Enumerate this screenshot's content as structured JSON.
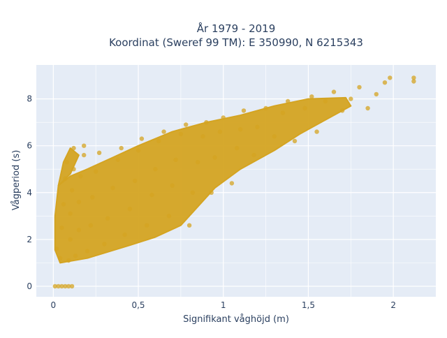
{
  "chart_data": {
    "type": "scatter",
    "title_line1": "År 1979 - 2019",
    "title_line2": "Koordinat (Sweref 99 TM): E 350990, N 6215343",
    "xlabel": "Signifikant våghöjd (m)",
    "ylabel": "Vågperiod (s)",
    "xlim": [
      -0.1,
      2.25
    ],
    "ylim": [
      -0.45,
      9.45
    ],
    "x_ticks": [
      0,
      0.5,
      1,
      1.5,
      2
    ],
    "x_tick_labels": [
      "0",
      "0,5",
      "1",
      "1,5",
      "2"
    ],
    "y_ticks": [
      0,
      2,
      4,
      6,
      8
    ],
    "y_tick_labels": [
      "0",
      "2",
      "4",
      "6",
      "8"
    ],
    "grid": true,
    "legend": "none",
    "marker_color": "#d4a422",
    "background_color": "#e5ecf6",
    "series": [
      {
        "points": [
          [
            0.01,
            0.0
          ],
          [
            0.03,
            0.0
          ],
          [
            0.05,
            0.0
          ],
          [
            0.07,
            0.0
          ],
          [
            0.09,
            0.0
          ],
          [
            0.11,
            0.0
          ],
          [
            0.02,
            1.6
          ],
          [
            0.04,
            1.2
          ],
          [
            0.05,
            2.5
          ],
          [
            0.06,
            3.5
          ],
          [
            0.07,
            4.6
          ],
          [
            0.08,
            5.3
          ],
          [
            0.09,
            1.1
          ],
          [
            0.1,
            2.0
          ],
          [
            0.1,
            3.1
          ],
          [
            0.11,
            4.1
          ],
          [
            0.12,
            5.0
          ],
          [
            0.12,
            5.9
          ],
          [
            0.13,
            1.3
          ],
          [
            0.15,
            2.4
          ],
          [
            0.15,
            3.6
          ],
          [
            0.16,
            4.7
          ],
          [
            0.18,
            5.6
          ],
          [
            0.18,
            6.0
          ],
          [
            0.2,
            1.5
          ],
          [
            0.22,
            2.6
          ],
          [
            0.23,
            3.8
          ],
          [
            0.25,
            4.9
          ],
          [
            0.27,
            5.7
          ],
          [
            0.3,
            1.8
          ],
          [
            0.32,
            2.9
          ],
          [
            0.35,
            4.2
          ],
          [
            0.38,
            5.4
          ],
          [
            0.4,
            5.9
          ],
          [
            0.42,
            2.2
          ],
          [
            0.45,
            3.3
          ],
          [
            0.48,
            4.5
          ],
          [
            0.5,
            5.8
          ],
          [
            0.52,
            6.3
          ],
          [
            0.55,
            2.6
          ],
          [
            0.58,
            3.9
          ],
          [
            0.6,
            5.0
          ],
          [
            0.62,
            6.2
          ],
          [
            0.65,
            6.6
          ],
          [
            0.68,
            3.0
          ],
          [
            0.7,
            4.3
          ],
          [
            0.72,
            5.4
          ],
          [
            0.75,
            6.5
          ],
          [
            0.78,
            6.9
          ],
          [
            0.8,
            2.6
          ],
          [
            0.82,
            4.0
          ],
          [
            0.85,
            5.3
          ],
          [
            0.88,
            6.4
          ],
          [
            0.9,
            7.0
          ],
          [
            0.93,
            4.0
          ],
          [
            0.95,
            5.5
          ],
          [
            0.98,
            6.6
          ],
          [
            1.0,
            7.2
          ],
          [
            1.05,
            4.4
          ],
          [
            1.08,
            5.9
          ],
          [
            1.1,
            6.7
          ],
          [
            1.12,
            7.5
          ],
          [
            1.18,
            5.6
          ],
          [
            1.2,
            6.8
          ],
          [
            1.25,
            7.6
          ],
          [
            1.3,
            6.4
          ],
          [
            1.35,
            7.4
          ],
          [
            1.38,
            7.9
          ],
          [
            1.42,
            6.2
          ],
          [
            1.48,
            7.6
          ],
          [
            1.52,
            8.1
          ],
          [
            1.55,
            6.6
          ],
          [
            1.6,
            7.9
          ],
          [
            1.65,
            8.3
          ],
          [
            1.7,
            7.5
          ],
          [
            1.75,
            8.0
          ],
          [
            1.8,
            8.5
          ],
          [
            1.85,
            7.6
          ],
          [
            1.9,
            8.2
          ],
          [
            1.95,
            8.7
          ],
          [
            1.98,
            8.9
          ],
          [
            2.12,
            8.9
          ],
          [
            2.12,
            8.75
          ]
        ]
      }
    ]
  }
}
